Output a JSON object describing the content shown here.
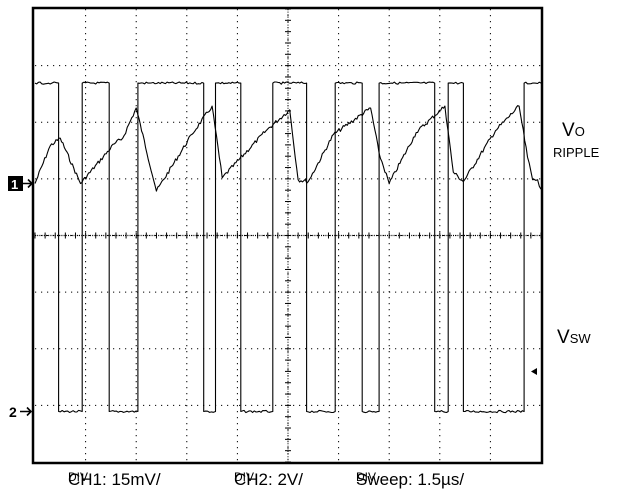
{
  "chart_data": {
    "type": "line",
    "grid": true,
    "divisions": {
      "horizontal": 10,
      "vertical": 8
    },
    "series": [
      {
        "name": "Vo RIPPLE",
        "channel": "1",
        "unit": "mV",
        "x_unit": "µs",
        "x": [
          0,
          0.45,
          0.75,
          1.35,
          2.35,
          2.6,
          3.0,
          3.6,
          4.65,
          5.25,
          5.55,
          6.85,
          7.55,
          7.8,
          8.1,
          8.85,
          9.95,
          10.2,
          10.5,
          11.3,
          12.15,
          12.4,
          12.7,
          13.65,
          14.35,
          14.6,
          14.75,
          14.9,
          15.0
        ],
        "y": [
          0.0,
          10.0,
          12.0,
          0.0,
          10.5,
          12.0,
          20.0,
          -2.0,
          13.0,
          20.5,
          1.5,
          14.0,
          19.5,
          1.0,
          0.5,
          13.0,
          20.0,
          8.0,
          0.0,
          13.5,
          20.5,
          3.0,
          0.5,
          14.0,
          20.5,
          7.0,
          1.0,
          1.0,
          -1.5
        ]
      },
      {
        "name": "VSW",
        "channel": "2",
        "unit": "V",
        "x_unit": "µs",
        "x": [
          0,
          0.5,
          0.5,
          0.7,
          0.7,
          1.4,
          1.4,
          2.2,
          2.2,
          3.05,
          3.05,
          3.35,
          3.35,
          5.0,
          5.0,
          5.35,
          5.35,
          6.1,
          6.1,
          7.05,
          7.05,
          7.4,
          7.4,
          8.05,
          8.05,
          8.9,
          8.9,
          9.7,
          9.7,
          10.2,
          10.2,
          10.55,
          10.55,
          11.85,
          11.85,
          12.25,
          12.25,
          12.7,
          12.7,
          14.5,
          14.5,
          14.75,
          14.75,
          15.0
        ],
        "y": [
          11.6,
          11.6,
          11.6,
          11.6,
          0,
          0,
          11.6,
          11.6,
          0,
          0,
          11.6,
          11.6,
          11.6,
          11.6,
          0,
          0,
          11.6,
          11.6,
          0,
          0,
          11.6,
          11.6,
          11.6,
          11.6,
          0,
          0,
          11.6,
          11.6,
          0,
          0,
          11.6,
          11.6,
          11.6,
          11.6,
          0,
          0,
          11.6,
          11.6,
          0,
          0,
          11.6,
          11.6,
          11.6,
          11.6
        ]
      }
    ]
  },
  "markers": {
    "ch1": "1",
    "ch2": "2"
  },
  "labels": {
    "vo_main": "V",
    "vo_sub": "O",
    "ripple": "RIPPLE",
    "vsw_main": "V",
    "vsw_sub": "SW"
  },
  "footer": {
    "ch1_text": "CH1: 15mV/",
    "ch1_unit": "DIV",
    "ch2_text": "CH2: 2V/",
    "ch2_unit": "DIV",
    "sweep_text": "Sweep: 1.5µs/",
    "sweep_unit": "DIV"
  },
  "colors": {
    "trace": "#000000",
    "grid": "#000000",
    "background": "#ffffff"
  }
}
